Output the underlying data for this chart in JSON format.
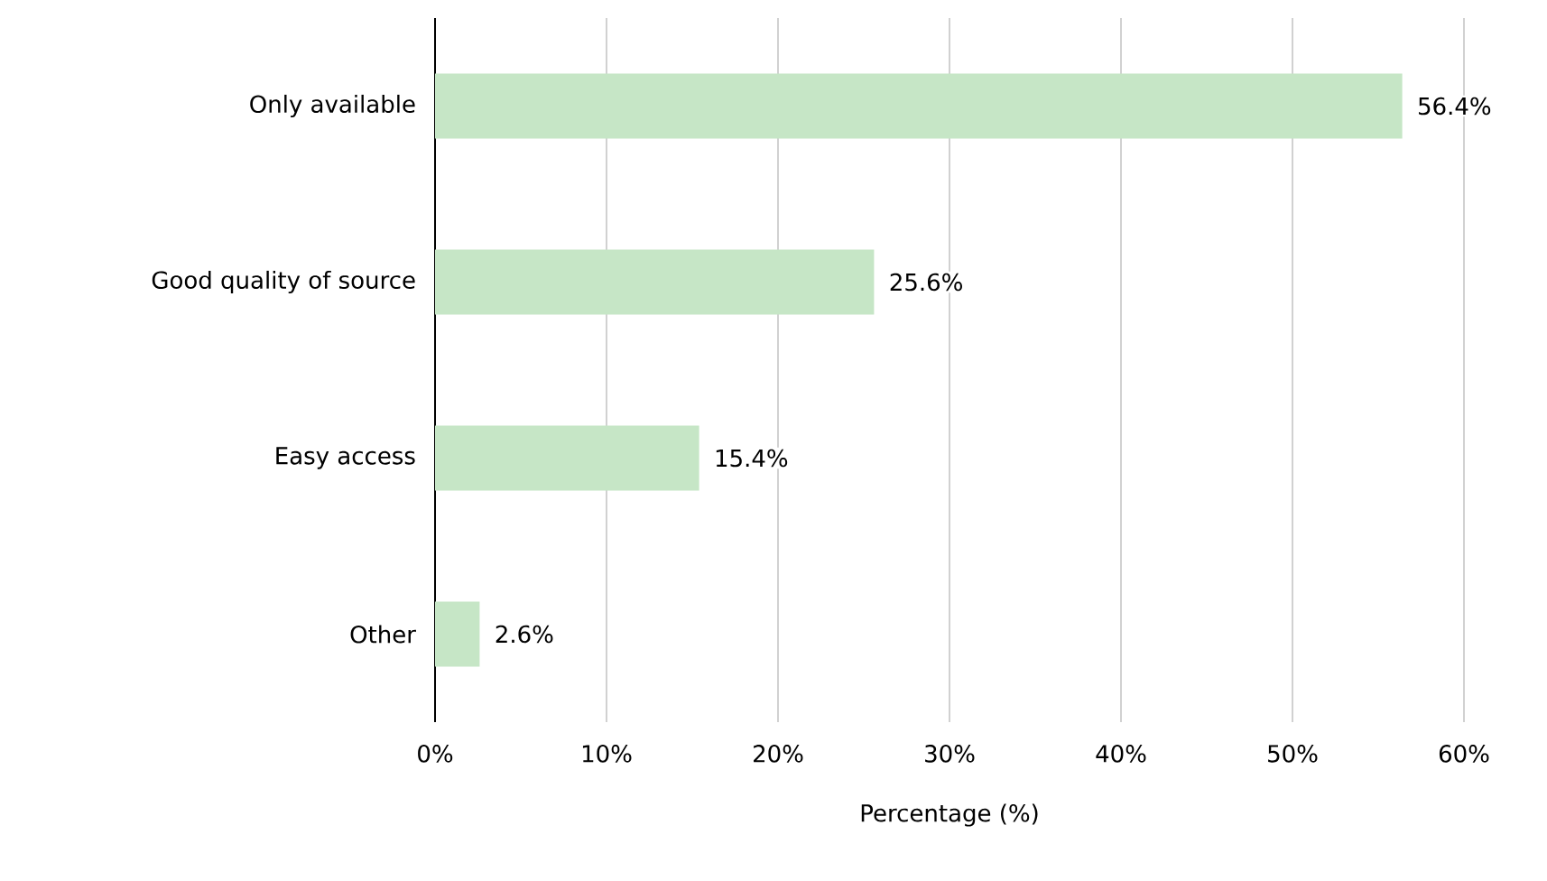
{
  "chart_data": {
    "type": "bar",
    "orientation": "horizontal",
    "categories": [
      "Only available",
      "Good quality of source",
      "Easy access",
      "Other"
    ],
    "values": [
      56.4,
      25.6,
      15.4,
      2.6
    ],
    "value_labels": [
      "56.4%",
      "25.6%",
      "15.4%",
      "2.6%"
    ],
    "color": "#c6e6c6",
    "xlabel": "Percentage (%)",
    "xlim": [
      0,
      60
    ],
    "xticks": [
      {
        "value": 0,
        "label": "0%"
      },
      {
        "value": 10,
        "label": "10%"
      },
      {
        "value": 20,
        "label": "20%"
      },
      {
        "value": 30,
        "label": "30%"
      },
      {
        "value": 40,
        "label": "40%"
      },
      {
        "value": 50,
        "label": "50%"
      },
      {
        "value": 60,
        "label": "60%"
      }
    ],
    "grid": "x"
  }
}
